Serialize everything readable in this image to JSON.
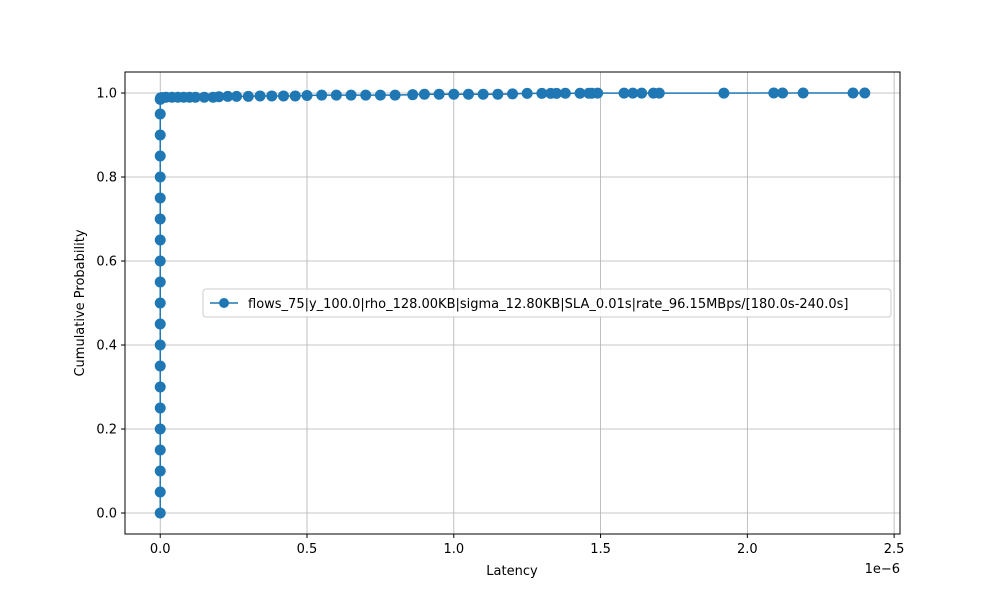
{
  "chart_data": {
    "type": "line",
    "title": "",
    "xlabel": "Latency",
    "ylabel": "Cumulative Probability",
    "x_offset_label": "1e−6",
    "xlim": [
      -1.2e-07,
      2.52e-06
    ],
    "ylim": [
      -0.05,
      1.05
    ],
    "x_scale": 1e-06,
    "x_ticks": [
      0,
      5e-07,
      1e-06,
      1.5e-06,
      2e-06,
      2.5e-06
    ],
    "x_tick_labels": [
      "0.0",
      "0.5",
      "1.0",
      "1.5",
      "2.0",
      "2.5"
    ],
    "y_ticks": [
      0.0,
      0.2,
      0.4,
      0.6,
      0.8,
      1.0
    ],
    "y_tick_labels": [
      "0.0",
      "0.2",
      "0.4",
      "0.6",
      "0.8",
      "1.0"
    ],
    "grid": true,
    "legend_position": "center-right",
    "color": "#1f77b4",
    "series": [
      {
        "name": "flows_75|y_100.0|rho_128.00KB|sigma_12.80KB|SLA_0.01s|rate_96.15MBps/[180.0s-240.0s]",
        "x": [
          0,
          0,
          0,
          0,
          0,
          0,
          0,
          0,
          0,
          0,
          0,
          0,
          0,
          0,
          0,
          0,
          0,
          0,
          0,
          0,
          0,
          1e-09,
          5e-09,
          1e-08,
          2e-08,
          4e-08,
          6e-08,
          8e-08,
          1e-07,
          1.2e-07,
          1.5e-07,
          1.8e-07,
          2e-07,
          2.3e-07,
          2.6e-07,
          3e-07,
          3.4e-07,
          3.8e-07,
          4.2e-07,
          4.6e-07,
          5e-07,
          5.5e-07,
          6e-07,
          6.5e-07,
          7e-07,
          7.5e-07,
          8e-07,
          8.6e-07,
          9e-07,
          9.5e-07,
          1e-06,
          1.05e-06,
          1.1e-06,
          1.15e-06,
          1.2e-06,
          1.25e-06,
          1.3e-06,
          1.33e-06,
          1.35e-06,
          1.38e-06,
          1.43e-06,
          1.46e-06,
          1.47e-06,
          1.49e-06,
          1.58e-06,
          1.61e-06,
          1.64e-06,
          1.68e-06,
          1.7e-06,
          1.92e-06,
          2.09e-06,
          2.12e-06,
          2.19e-06,
          2.36e-06,
          2.4e-06
        ],
        "y": [
          0.0,
          0.05,
          0.1,
          0.15,
          0.2,
          0.25,
          0.3,
          0.35,
          0.4,
          0.45,
          0.5,
          0.55,
          0.6,
          0.65,
          0.7,
          0.75,
          0.8,
          0.85,
          0.9,
          0.95,
          0.985,
          0.988,
          0.989,
          0.989,
          0.99,
          0.99,
          0.99,
          0.99,
          0.99,
          0.99,
          0.99,
          0.99,
          0.991,
          0.992,
          0.992,
          0.992,
          0.993,
          0.993,
          0.993,
          0.993,
          0.994,
          0.995,
          0.995,
          0.995,
          0.995,
          0.995,
          0.995,
          0.996,
          0.997,
          0.997,
          0.997,
          0.997,
          0.997,
          0.997,
          0.998,
          0.999,
          0.999,
          0.999,
          0.9992,
          0.9993,
          0.9994,
          0.9995,
          0.9995,
          0.9996,
          0.9996,
          0.9997,
          0.9997,
          0.9998,
          0.9998,
          0.9998,
          0.9999,
          0.9999,
          0.9999,
          1.0,
          1.0
        ]
      }
    ]
  }
}
